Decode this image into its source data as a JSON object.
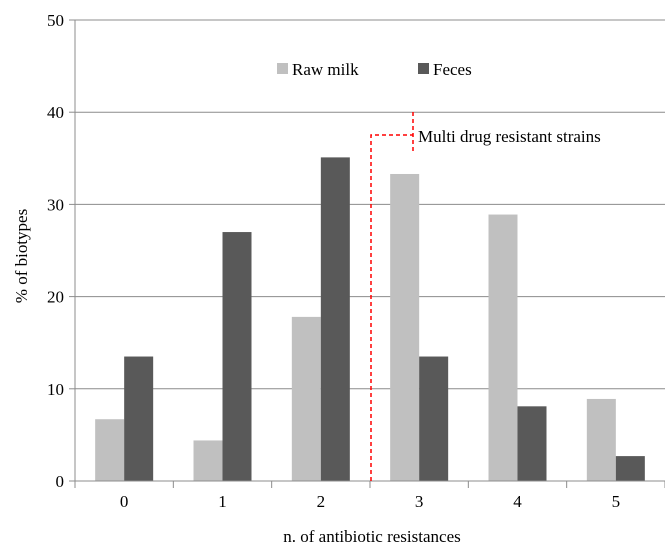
{
  "chart_data": {
    "type": "bar",
    "categories": [
      "0",
      "1",
      "2",
      "3",
      "4",
      "5"
    ],
    "series": [
      {
        "name": "Raw milk",
        "values": [
          6.7,
          4.4,
          17.8,
          33.3,
          28.9,
          8.9
        ],
        "color": "#c0c0c0"
      },
      {
        "name": "Feces",
        "values": [
          13.5,
          27.0,
          35.1,
          13.5,
          8.1,
          2.7
        ],
        "color": "#595959"
      }
    ],
    "title": "",
    "xlabel": "n. of antibiotic resistances",
    "ylabel": "% of biotypes",
    "ylim": [
      0,
      50
    ],
    "yticks": [
      "0",
      "10",
      "20",
      "30",
      "40",
      "50"
    ],
    "grid": true,
    "legend_position": "top-center",
    "annotation": {
      "text": "Multi drug resistant strains",
      "color": "#ff0000",
      "category_boundary": "between 2 and 3"
    }
  }
}
